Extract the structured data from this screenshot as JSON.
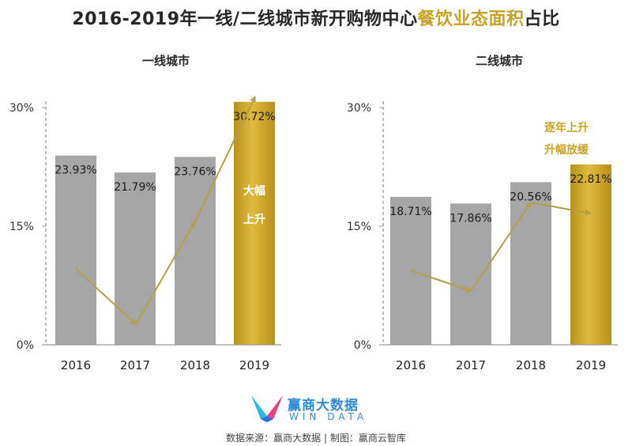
{
  "title": {
    "part1": "2016-2019年一线/二线城市新开购物中心",
    "part2": "餐饮业态面积",
    "part3": "占比"
  },
  "colors": {
    "bar_gray": "#a6a6a6",
    "bar_gold": "#c9a227",
    "arrow": "#b39f45",
    "axis": "#999999"
  },
  "chart_data": [
    {
      "type": "bar",
      "title": "一线城市",
      "categories": [
        "2016",
        "2017",
        "2018",
        "2019"
      ],
      "values": [
        23.93,
        21.79,
        23.76,
        30.72
      ],
      "value_labels": [
        "23.93%",
        "21.79%",
        "23.76%",
        "30.72%"
      ],
      "highlight_index": 3,
      "y_ticks": [
        "0%",
        "15%",
        "30%"
      ],
      "ylim": [
        0,
        30
      ],
      "annotation": [
        "大幅",
        "上升"
      ],
      "grid": false
    },
    {
      "type": "bar",
      "title": "二线城市",
      "categories": [
        "2016",
        "2017",
        "2018",
        "2019"
      ],
      "values": [
        18.71,
        17.86,
        20.56,
        22.81
      ],
      "value_labels": [
        "18.71%",
        "17.86%",
        "20.56%",
        "22.81%"
      ],
      "highlight_index": 3,
      "y_ticks": [
        "0%",
        "15%",
        "30%"
      ],
      "ylim": [
        0,
        30
      ],
      "annotation": [
        "逐年上升",
        "升幅放缓"
      ],
      "grid": false
    }
  ],
  "logo": {
    "name": "赢商大数据",
    "sub": "WIN DATA"
  },
  "source": "数据来源：赢商大数据 | 制图：赢商云智库"
}
